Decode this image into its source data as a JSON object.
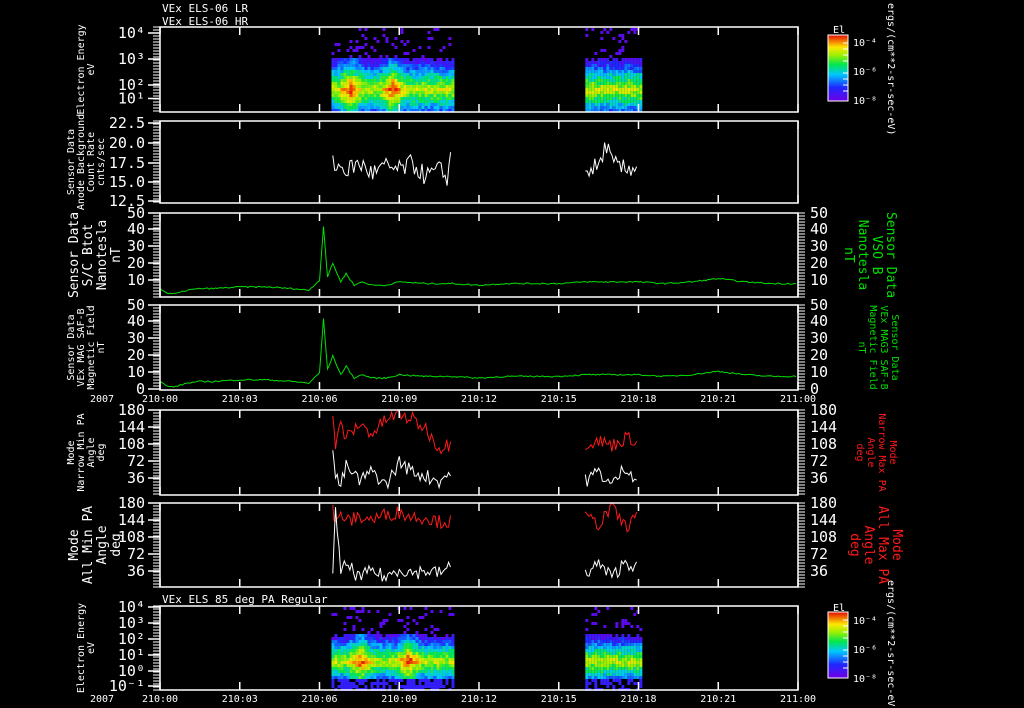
{
  "colors": {
    "background": "#000000",
    "axes": "#ffffff",
    "bfield": "#00e000",
    "pa_max": "#ff1a1a",
    "pa_min": "#ffffff"
  },
  "titles": {
    "top_lr": "VEx ELS-06 LR",
    "top_hr": "VEx ELS-06 HR",
    "bottom": "VEx ELS 85 deg PA Regular"
  },
  "time_axis": {
    "year": "2007",
    "ticks": [
      "210:00",
      "210:03",
      "210:06",
      "210:09",
      "210:12",
      "210:15",
      "210:18",
      "210:21",
      "211:00"
    ]
  },
  "colorbar": {
    "title": "El",
    "labels": [
      "10⁻⁴",
      "10⁻⁶",
      "10⁻⁸"
    ],
    "units": "ergs/(cm**2-sr-sec-eV)"
  },
  "chart_data": [
    {
      "type": "heatmap",
      "name": "ELS-06 spectrogram",
      "ylabel": [
        "Electron Energy",
        "eV"
      ],
      "yscale": "log",
      "yticks": [
        "10⁴",
        "10³",
        "10²",
        "10¹"
      ],
      "ylim_eV": [
        0.5,
        10000
      ],
      "intervals_h": [
        [
          6.45,
          11.0
        ],
        [
          16.0,
          18.05
        ]
      ],
      "peak_energy_eV": 8,
      "peak_intensity_times_h": [
        7.1,
        8.7
      ]
    },
    {
      "type": "line",
      "name": "Anode Background Count Rate",
      "ylabel": [
        "Sensor Data",
        "Anode Background",
        "Count Rate",
        "cnts/sec"
      ],
      "yticks": [
        "22.5",
        "20.0",
        "17.5",
        "15.0",
        "12.5"
      ],
      "ylim": [
        10,
        22.5
      ],
      "series": [
        {
          "name": "count rate",
          "x_h": [
            6.5,
            7.0,
            7.5,
            8.0,
            8.5,
            9.0,
            9.5,
            10.0,
            10.5,
            10.8,
            11.0,
            16.0,
            16.5,
            16.8,
            17.0,
            17.5,
            18.0
          ],
          "y": [
            16,
            15,
            16,
            14.5,
            15.5,
            15,
            16,
            14,
            15,
            14,
            18.5,
            15,
            15.5,
            19,
            16,
            15,
            16
          ]
        }
      ]
    },
    {
      "type": "line",
      "name": "S/C Btot",
      "ylabel": [
        "Sensor Data",
        "S/C Btot",
        "Nanotesla",
        "nT"
      ],
      "ylabel_right": [
        "Sensor Data",
        "VSO B",
        "Nanotesla",
        "nT"
      ],
      "yticks": [
        "50",
        "40",
        "30",
        "20",
        "10"
      ],
      "ylim": [
        0,
        50
      ],
      "series": [
        {
          "name": "Btot",
          "x_h": [
            0,
            0.3,
            0.6,
            1.0,
            1.5,
            2,
            3,
            4,
            5,
            5.6,
            6.0,
            6.15,
            6.3,
            6.5,
            6.8,
            7.0,
            7.3,
            7.6,
            8.0,
            8.5,
            9,
            10,
            11,
            12,
            13,
            14,
            15,
            16,
            17,
            18,
            19,
            20,
            21,
            22,
            23,
            24
          ],
          "y": [
            5,
            2,
            2,
            4,
            5,
            5,
            6,
            6,
            5,
            4,
            10,
            42,
            12,
            20,
            9,
            14,
            7,
            9,
            7,
            7,
            9,
            8,
            8,
            7,
            8,
            8,
            8,
            9,
            9,
            9,
            8,
            9,
            11,
            9,
            8,
            8
          ]
        }
      ]
    },
    {
      "type": "line",
      "name": "MAG SAF-B Magnetic Field",
      "ylabel": [
        "Sensor Data",
        "VEx MAG SAF-B",
        "Magnetic Field",
        "nT"
      ],
      "ylabel_right": [
        "Sensor Data",
        "VEx MAG3 SAF-B",
        "Magnetic Field",
        "nT"
      ],
      "yticks": [
        "50",
        "40",
        "30",
        "20",
        "10",
        "0"
      ],
      "ylim": [
        0,
        50
      ],
      "series": [
        {
          "name": "B",
          "x_h": [
            0,
            0.3,
            0.6,
            1.0,
            1.5,
            2,
            3,
            4,
            5,
            5.6,
            6.0,
            6.15,
            6.3,
            6.5,
            6.8,
            7.0,
            7.3,
            7.6,
            8.0,
            8.5,
            9,
            10,
            11,
            12,
            13,
            14,
            15,
            16,
            17,
            18,
            19,
            20,
            21,
            22,
            23,
            24
          ],
          "y": [
            5,
            2,
            2,
            4,
            5,
            5,
            6,
            6,
            5,
            4,
            10,
            42,
            12,
            20,
            9,
            14,
            7,
            9,
            7,
            7,
            9,
            8,
            8,
            7,
            8,
            8,
            8,
            9,
            9,
            9,
            8,
            9,
            11,
            9,
            8,
            8
          ]
        }
      ]
    },
    {
      "type": "line",
      "name": "Narrow Mode PA",
      "ylabel": [
        "Mode",
        "Narrow Min PA",
        "Angle",
        "deg"
      ],
      "ylabel_right": [
        "Mode",
        "Narrow Max PA",
        "Angle",
        "deg"
      ],
      "yticks": [
        "180",
        "144",
        "108",
        "72",
        "36"
      ],
      "ylim": [
        0,
        180
      ],
      "series": [
        {
          "name": "Narrow Max PA",
          "color_key": "pa_max",
          "x_h": [
            6.5,
            6.6,
            6.8,
            7.0,
            7.5,
            8.0,
            8.5,
            9.0,
            9.5,
            10.0,
            10.5,
            11.0,
            16.0,
            16.5,
            17.0,
            17.5,
            18.0
          ],
          "y": [
            180,
            100,
            150,
            120,
            150,
            130,
            160,
            170,
            160,
            140,
            100,
            110,
            110,
            115,
            105,
            120,
            118
          ]
        },
        {
          "name": "Narrow Min PA",
          "color_key": "pa_min",
          "x_h": [
            6.5,
            6.6,
            6.8,
            7.0,
            7.5,
            8.0,
            8.5,
            9.0,
            9.5,
            10.0,
            10.5,
            11.0,
            16.0,
            16.5,
            17.0,
            17.5,
            18.0
          ],
          "y": [
            90,
            40,
            20,
            60,
            30,
            50,
            20,
            70,
            50,
            40,
            30,
            50,
            30,
            50,
            20,
            60,
            30
          ]
        }
      ]
    },
    {
      "type": "line",
      "name": "All Mode PA",
      "ylabel": [
        "Mode",
        "All Min PA",
        "Angle",
        "deg"
      ],
      "ylabel_right": [
        "Mode",
        "All Max PA",
        "Angle",
        "deg"
      ],
      "yticks": [
        "180",
        "144",
        "108",
        "72",
        "36"
      ],
      "ylim": [
        0,
        180
      ],
      "series": [
        {
          "name": "All Max PA",
          "color_key": "pa_max",
          "x_h": [
            6.5,
            6.6,
            6.8,
            7.0,
            7.5,
            8.0,
            8.5,
            9.0,
            9.5,
            10.0,
            10.5,
            11.0,
            16.0,
            16.5,
            17.0,
            17.5,
            18.0
          ],
          "y": [
            170,
            130,
            160,
            140,
            150,
            145,
            155,
            160,
            150,
            150,
            140,
            140,
            150,
            135,
            170,
            130,
            150
          ]
        },
        {
          "name": "All Min PA",
          "color_key": "pa_min",
          "x_h": [
            6.5,
            6.6,
            6.8,
            7.0,
            7.5,
            8.0,
            8.5,
            9.0,
            9.5,
            10.0,
            10.5,
            11.0,
            16.0,
            16.5,
            17.0,
            17.5,
            18.0
          ],
          "y": [
            40,
            175,
            25,
            50,
            20,
            35,
            20,
            40,
            30,
            35,
            30,
            45,
            30,
            50,
            20,
            55,
            40
          ]
        }
      ]
    },
    {
      "type": "heatmap",
      "name": "ELS 85 deg PA Regular spectrogram",
      "ylabel": [
        "Electron Energy",
        "eV"
      ],
      "yscale": "log",
      "yticks": [
        "10⁴",
        "10³",
        "10²",
        "10¹",
        "10⁰",
        "10⁻¹"
      ],
      "ylim_eV": [
        0.1,
        10000
      ],
      "intervals_h": [
        [
          6.45,
          11.0
        ],
        [
          16.0,
          18.05
        ]
      ],
      "peak_energy_eV": 6,
      "peak_intensity_times_h": [
        7.5,
        9.3
      ]
    }
  ]
}
